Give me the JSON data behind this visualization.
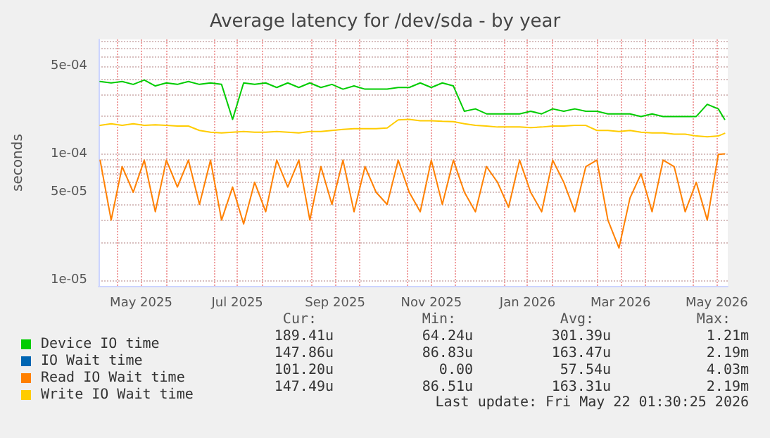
{
  "chart_data": {
    "type": "line",
    "title": "Average latency for /dev/sda - by year",
    "ylabel": "seconds",
    "log": true,
    "grid": true,
    "legend": "bottom left",
    "line_style": "solid",
    "marker": "none",
    "x": [
      "2025-04-20",
      "2025-04-27",
      "2025-05-04",
      "2025-05-11",
      "2025-05-18",
      "2025-05-25",
      "2025-06-01",
      "2025-06-08",
      "2025-06-15",
      "2025-06-22",
      "2025-06-29",
      "2025-07-06",
      "2025-07-13",
      "2025-07-20",
      "2025-07-27",
      "2025-08-03",
      "2025-08-10",
      "2025-08-17",
      "2025-08-24",
      "2025-08-31",
      "2025-09-07",
      "2025-09-14",
      "2025-09-21",
      "2025-09-28",
      "2025-10-05",
      "2025-10-12",
      "2025-10-19",
      "2025-10-26",
      "2025-11-02",
      "2025-11-09",
      "2025-11-16",
      "2025-11-23",
      "2025-11-30",
      "2025-12-07",
      "2025-12-14",
      "2025-12-21",
      "2025-12-28",
      "2026-01-04",
      "2026-01-11",
      "2026-01-18",
      "2026-01-25",
      "2026-02-01",
      "2026-02-08",
      "2026-02-15",
      "2026-02-22",
      "2026-03-01",
      "2026-03-08",
      "2026-03-15",
      "2026-03-22",
      "2026-03-29",
      "2026-04-05",
      "2026-04-12",
      "2026-04-19",
      "2026-04-26",
      "2026-05-03",
      "2026-05-10",
      "2026-05-17",
      "2026-05-21"
    ],
    "xlim": [
      "2025-04-19",
      "2026-05-23"
    ],
    "xticks": [
      {
        "value": "2025-05-01",
        "label": null
      },
      {
        "value": "2025-05-16",
        "label": "May 2025"
      },
      {
        "value": "2025-06-01",
        "label": null
      },
      {
        "value": "2025-07-01",
        "label": null
      },
      {
        "value": "2025-07-16",
        "label": "Jul 2025"
      },
      {
        "value": "2025-08-01",
        "label": null
      },
      {
        "value": "2025-09-01",
        "label": null
      },
      {
        "value": "2025-09-16",
        "label": "Sep 2025"
      },
      {
        "value": "2025-10-01",
        "label": null
      },
      {
        "value": "2025-11-01",
        "label": null
      },
      {
        "value": "2025-11-16",
        "label": "Nov 2025"
      },
      {
        "value": "2025-12-01",
        "label": null
      },
      {
        "value": "2026-01-01",
        "label": null
      },
      {
        "value": "2026-01-16",
        "label": "Jan 2026"
      },
      {
        "value": "2026-02-01",
        "label": null
      },
      {
        "value": "2026-03-01",
        "label": null
      },
      {
        "value": "2026-03-16",
        "label": "Mar 2026"
      },
      {
        "value": "2026-04-01",
        "label": null
      },
      {
        "value": "2026-05-01",
        "label": null
      },
      {
        "value": "2026-05-16",
        "label": "May 2026"
      }
    ],
    "ylim": [
      9e-06,
      0.00082
    ],
    "yticks": [
      {
        "value": 1e-05,
        "label": "1e-05"
      },
      {
        "value": 2e-05,
        "label": null
      },
      {
        "value": 3e-05,
        "label": null
      },
      {
        "value": 4e-05,
        "label": null
      },
      {
        "value": 5e-05,
        "label": "5e-05"
      },
      {
        "value": 6e-05,
        "label": null
      },
      {
        "value": 7e-05,
        "label": null
      },
      {
        "value": 8e-05,
        "label": null
      },
      {
        "value": 9e-05,
        "label": null
      },
      {
        "value": 0.0001,
        "label": "1e-04"
      },
      {
        "value": 0.0002,
        "label": null
      },
      {
        "value": 0.0003,
        "label": null
      },
      {
        "value": 0.0004,
        "label": null
      },
      {
        "value": 0.0005,
        "label": "5e-04"
      },
      {
        "value": 0.0006,
        "label": null
      },
      {
        "value": 0.0007,
        "label": null
      },
      {
        "value": 0.0008,
        "label": null
      }
    ],
    "series": [
      {
        "name": "Device IO time",
        "color": "#00cc00",
        "values": [
          0.00038,
          0.00037,
          0.00038,
          0.00036,
          0.00039,
          0.00035,
          0.00037,
          0.00036,
          0.00038,
          0.00036,
          0.00037,
          0.00036,
          0.00019,
          0.00037,
          0.00036,
          0.00037,
          0.00034,
          0.00037,
          0.00034,
          0.00037,
          0.00034,
          0.00036,
          0.00033,
          0.00035,
          0.00033,
          0.00033,
          0.00033,
          0.00034,
          0.00034,
          0.00037,
          0.00034,
          0.00037,
          0.00035,
          0.00022,
          0.00023,
          0.00021,
          0.00021,
          0.00021,
          0.00021,
          0.00022,
          0.00021,
          0.00023,
          0.00022,
          0.00023,
          0.00022,
          0.00022,
          0.00021,
          0.00021,
          0.00021,
          0.0002,
          0.00021,
          0.0002,
          0.0002,
          0.0002,
          0.0002,
          0.00025,
          0.00023,
          0.00019
        ]
      },
      {
        "name": "IO Wait time",
        "color": "#0066b3",
        "values": [
          null,
          null,
          null,
          null,
          null,
          null,
          null,
          null,
          null,
          null,
          null,
          null,
          null,
          null,
          null,
          null,
          null,
          null,
          null,
          null,
          null,
          null,
          null,
          null,
          null,
          null,
          null,
          null,
          null,
          null,
          null,
          null,
          null,
          null,
          null,
          null,
          null,
          null,
          null,
          null,
          null,
          null,
          null,
          null,
          null,
          null,
          null,
          null,
          null,
          null,
          null,
          null,
          null,
          null,
          null,
          null,
          null,
          null
        ]
      },
      {
        "name": "Read IO Wait time",
        "color": "#ff8000",
        "values": [
          9e-05,
          3e-05,
          8e-05,
          5e-05,
          9e-05,
          3.5e-05,
          9e-05,
          5.5e-05,
          9e-05,
          4e-05,
          9e-05,
          3e-05,
          5.5e-05,
          2.8e-05,
          6e-05,
          3.5e-05,
          9e-05,
          5.5e-05,
          9e-05,
          3e-05,
          8e-05,
          4e-05,
          9e-05,
          3.5e-05,
          8e-05,
          5e-05,
          4e-05,
          9e-05,
          5e-05,
          3.5e-05,
          9e-05,
          4e-05,
          9e-05,
          5e-05,
          3.5e-05,
          8e-05,
          6e-05,
          3.8e-05,
          9e-05,
          5e-05,
          3.5e-05,
          9e-05,
          6e-05,
          3.5e-05,
          8e-05,
          9e-05,
          3e-05,
          1.8e-05,
          4.5e-05,
          7e-05,
          3.5e-05,
          9e-05,
          8e-05,
          3.5e-05,
          6e-05,
          3e-05,
          0.0001,
          0.000101
        ]
      },
      {
        "name": "Write IO Wait time",
        "color": "#ffcc00",
        "values": [
          0.00017,
          0.000175,
          0.00017,
          0.000175,
          0.00017,
          0.000172,
          0.00017,
          0.000168,
          0.000168,
          0.000155,
          0.00015,
          0.000148,
          0.00015,
          0.000152,
          0.00015,
          0.00015,
          0.000152,
          0.00015,
          0.000148,
          0.000152,
          0.000152,
          0.000155,
          0.000158,
          0.00016,
          0.00016,
          0.00016,
          0.000162,
          0.000188,
          0.00019,
          0.000185,
          0.000185,
          0.000183,
          0.000182,
          0.000175,
          0.00017,
          0.000168,
          0.000165,
          0.000165,
          0.000165,
          0.000163,
          0.000165,
          0.000168,
          0.000168,
          0.00017,
          0.00017,
          0.000155,
          0.000155,
          0.000152,
          0.000155,
          0.00015,
          0.000148,
          0.000148,
          0.000145,
          0.000145,
          0.00014,
          0.000138,
          0.00014,
          0.000147
        ]
      }
    ],
    "annotations": [
      "Cur:",
      "Min:",
      "Avg:",
      "Max:",
      "189.41u",
      "64.24u",
      "301.39u",
      "1.21m",
      "147.86u",
      "86.83u",
      "163.47u",
      "2.19m",
      "101.20u",
      "0.00",
      "57.54u",
      "4.03m",
      "147.49u",
      "86.51u",
      "163.31u",
      "2.19m",
      "Last update: Fri May 22 01:30:25 2026"
    ]
  }
}
